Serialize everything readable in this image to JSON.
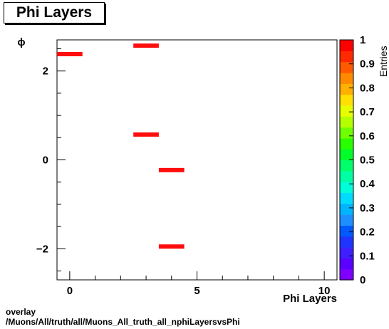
{
  "chart_data": {
    "type": "heatmap",
    "title": "Phi Layers",
    "xlabel": "Phi Layers",
    "ylabel": "ϕ",
    "zlabel": "Entries",
    "xlim": [
      -0.5,
      10.5
    ],
    "ylim": [
      -2.7,
      2.7
    ],
    "zlim": [
      0,
      1
    ],
    "x_ticks": [
      {
        "value": 0,
        "label": "0"
      },
      {
        "value": 5,
        "label": "5"
      },
      {
        "value": 10,
        "label": "10"
      }
    ],
    "y_ticks": [
      {
        "value": 2,
        "label": "2"
      },
      {
        "value": 0,
        "label": "0"
      },
      {
        "value": -2,
        "label": "−2"
      }
    ],
    "z_ticks": [
      "0",
      "0.1",
      "0.2",
      "0.3",
      "0.4",
      "0.5",
      "0.6",
      "0.7",
      "0.8",
      "0.9",
      "1"
    ],
    "cells": [
      {
        "x": 0,
        "y": 2.38,
        "z": 1
      },
      {
        "x": 3,
        "y": 2.57,
        "z": 1
      },
      {
        "x": 3,
        "y": 0.57,
        "z": 1
      },
      {
        "x": 4,
        "y": -0.23,
        "z": 1
      },
      {
        "x": 4,
        "y": -1.95,
        "z": 1
      }
    ],
    "bar_color": "#ff0d0d",
    "palette": [
      "#7f00ff",
      "#5a00ff",
      "#3f1fff",
      "#1f35ff",
      "#005aff",
      "#1f8fff",
      "#00b4ff",
      "#00dcff",
      "#00ffd9",
      "#00ffa5",
      "#00ff6a",
      "#00ff2a",
      "#28ff00",
      "#70ff00",
      "#b4ff00",
      "#e6ff00",
      "#ffe000",
      "#ffb000",
      "#ff8a00",
      "#ff5a00",
      "#ff2a00",
      "#ff0000"
    ]
  },
  "footer": {
    "line1": "overlay",
    "line2": "/Muons/All/truth/all/Muons_All_truth_all_nphiLayersvsPhi"
  }
}
